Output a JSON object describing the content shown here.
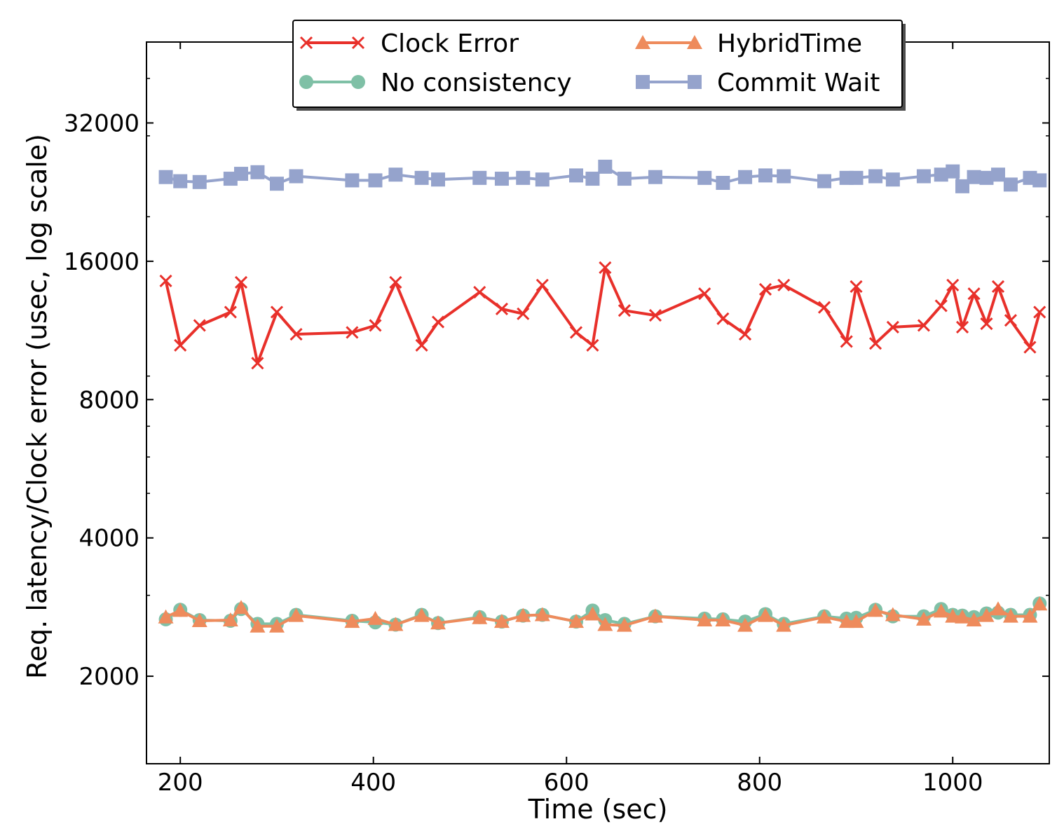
{
  "chart_data": {
    "type": "line",
    "title": "",
    "xlabel": "Time (sec)",
    "ylabel": "Req. latency/Clock error (usec, log scale)",
    "xlim": [
      165,
      1100
    ],
    "ylim": [
      1290,
      48000
    ],
    "yscale": "log2",
    "grid": false,
    "legend_position": "top-center",
    "x_ticks": [
      200,
      400,
      600,
      800,
      1000
    ],
    "x_tick_labels": [
      "200",
      "400",
      "600",
      "800",
      "1000"
    ],
    "y_ticks": [
      2000,
      4000,
      8000,
      16000,
      32000
    ],
    "y_tick_labels": [
      "2000",
      "4000",
      "8000",
      "16000",
      "32000"
    ],
    "series": [
      {
        "name": "Clock Error",
        "color": "#e8302a",
        "marker": "x",
        "x": [
          185,
          200,
          220,
          252,
          263,
          280,
          300,
          320,
          378,
          402,
          423,
          450,
          467,
          510,
          533,
          555,
          575,
          610,
          627,
          640,
          660,
          692,
          743,
          762,
          785,
          806,
          825,
          867,
          890,
          900,
          920,
          938,
          970,
          988,
          1000,
          1010,
          1022,
          1035,
          1047,
          1060,
          1080,
          1090
        ],
        "y": [
          14500,
          10500,
          11600,
          12400,
          14400,
          9600,
          12400,
          11100,
          11200,
          11600,
          14400,
          10500,
          11800,
          13700,
          12600,
          12300,
          14200,
          11200,
          10500,
          15500,
          12500,
          12200,
          13600,
          12000,
          11100,
          13900,
          14200,
          12700,
          10700,
          14100,
          10600,
          11500,
          11600,
          12800,
          14200,
          11500,
          13600,
          11700,
          14100,
          11900,
          10400,
          12400
        ]
      },
      {
        "name": "No consistency",
        "color": "#7fc0a6",
        "marker": "circle",
        "x": [
          185,
          200,
          220,
          252,
          263,
          280,
          300,
          320,
          378,
          402,
          423,
          450,
          467,
          510,
          533,
          555,
          575,
          610,
          627,
          640,
          660,
          692,
          743,
          762,
          785,
          806,
          825,
          867,
          890,
          900,
          920,
          938,
          970,
          988,
          1000,
          1010,
          1022,
          1035,
          1047,
          1060,
          1080,
          1090
        ],
        "y": [
          2660,
          2790,
          2650,
          2640,
          2800,
          2600,
          2600,
          2720,
          2640,
          2620,
          2590,
          2720,
          2610,
          2690,
          2630,
          2710,
          2720,
          2630,
          2780,
          2650,
          2600,
          2700,
          2670,
          2660,
          2630,
          2730,
          2600,
          2700,
          2670,
          2680,
          2790,
          2700,
          2700,
          2800,
          2720,
          2710,
          2690,
          2740,
          2750,
          2720,
          2720,
          2880
        ]
      },
      {
        "name": "HybridTime",
        "color": "#ee8b5c",
        "marker": "triangle",
        "x": [
          185,
          200,
          220,
          252,
          263,
          280,
          300,
          320,
          378,
          402,
          423,
          450,
          467,
          510,
          533,
          555,
          575,
          610,
          627,
          640,
          660,
          692,
          743,
          762,
          785,
          806,
          825,
          867,
          890,
          900,
          920,
          938,
          970,
          988,
          1000,
          1010,
          1022,
          1035,
          1047,
          1060,
          1080,
          1090
        ],
        "y": [
          2690,
          2780,
          2640,
          2650,
          2820,
          2570,
          2570,
          2710,
          2630,
          2670,
          2590,
          2710,
          2610,
          2680,
          2630,
          2710,
          2720,
          2630,
          2730,
          2590,
          2580,
          2700,
          2650,
          2650,
          2580,
          2710,
          2580,
          2690,
          2630,
          2630,
          2780,
          2720,
          2660,
          2770,
          2700,
          2690,
          2650,
          2710,
          2800,
          2700,
          2700,
          2870
        ]
      },
      {
        "name": "Commit Wait",
        "color": "#95a3cc",
        "marker": "square",
        "x": [
          185,
          200,
          220,
          252,
          263,
          280,
          300,
          320,
          378,
          402,
          423,
          450,
          467,
          510,
          533,
          555,
          575,
          610,
          627,
          640,
          660,
          692,
          743,
          762,
          785,
          806,
          825,
          867,
          890,
          900,
          920,
          938,
          970,
          988,
          1000,
          1010,
          1022,
          1035,
          1047,
          1060,
          1080,
          1090
        ],
        "y": [
          24400,
          23900,
          23800,
          24200,
          24800,
          25000,
          23600,
          24500,
          24000,
          24000,
          24700,
          24300,
          24100,
          24300,
          24200,
          24300,
          24100,
          24600,
          24200,
          25700,
          24200,
          24400,
          24300,
          23700,
          24400,
          24600,
          24500,
          23900,
          24300,
          24300,
          24500,
          24100,
          24500,
          24700,
          25100,
          23300,
          24400,
          24300,
          24700,
          23500,
          24300,
          24000
        ]
      }
    ]
  }
}
